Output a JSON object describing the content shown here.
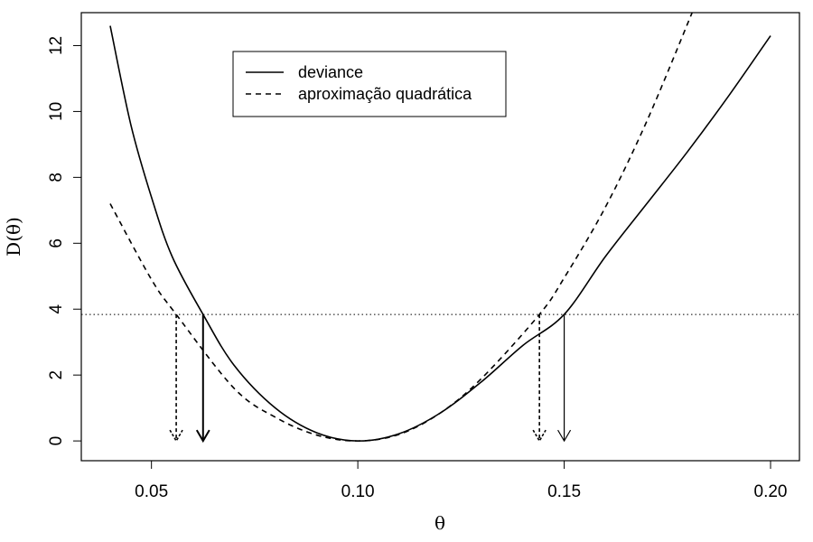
{
  "chart_data": {
    "type": "line",
    "xlabel": "θ",
    "ylabel": "D(θ)",
    "xlim": [
      0.033,
      0.207
    ],
    "ylim": [
      -0.6,
      13.0
    ],
    "x_ticks": [
      0.05,
      0.1,
      0.15,
      0.2
    ],
    "x_tick_labels": [
      "0.05",
      "0.10",
      "0.15",
      "0.20"
    ],
    "y_ticks": [
      0,
      2,
      4,
      6,
      8,
      10,
      12
    ],
    "y_tick_labels": [
      "0",
      "2",
      "4",
      "6",
      "8",
      "10",
      "12"
    ],
    "grid": false,
    "legend": {
      "position": "top-center",
      "entries": [
        {
          "label": "deviance",
          "linestyle": "solid"
        },
        {
          "label": "aproximação quadrática",
          "linestyle": "dashed"
        }
      ]
    },
    "threshold": {
      "y": 3.84,
      "linestyle": "dotted"
    },
    "series": [
      {
        "name": "deviance",
        "linestyle": "solid",
        "x": [
          0.04,
          0.045,
          0.05,
          0.055,
          0.0625,
          0.07,
          0.08,
          0.09,
          0.1,
          0.11,
          0.12,
          0.13,
          0.14,
          0.15,
          0.16,
          0.17,
          0.18,
          0.19,
          0.2
        ],
        "y": [
          12.6,
          9.6,
          7.4,
          5.6,
          3.84,
          2.3,
          1.0,
          0.25,
          0.0,
          0.22,
          0.85,
          1.8,
          2.9,
          3.84,
          5.6,
          7.2,
          8.8,
          10.5,
          12.3
        ]
      },
      {
        "name": "aproximação quadrática",
        "linestyle": "dashed",
        "x": [
          0.04,
          0.05,
          0.056,
          0.07,
          0.08,
          0.09,
          0.1,
          0.11,
          0.12,
          0.13,
          0.144,
          0.15,
          0.16,
          0.17,
          0.181
        ],
        "y": [
          7.2,
          4.9,
          3.84,
          1.6,
          0.72,
          0.18,
          0.0,
          0.2,
          0.85,
          1.9,
          3.84,
          4.95,
          7.1,
          9.7,
          13.0
        ]
      }
    ],
    "arrows": [
      {
        "x": 0.0625,
        "from": 3.84,
        "to": 0,
        "linestyle": "solid"
      },
      {
        "x": 0.15,
        "from": 3.84,
        "to": 0,
        "linestyle": "solid"
      },
      {
        "x": 0.056,
        "from": 3.84,
        "to": 0,
        "linestyle": "dashed"
      },
      {
        "x": 0.144,
        "from": 3.84,
        "to": 0,
        "linestyle": "dashed"
      }
    ]
  }
}
